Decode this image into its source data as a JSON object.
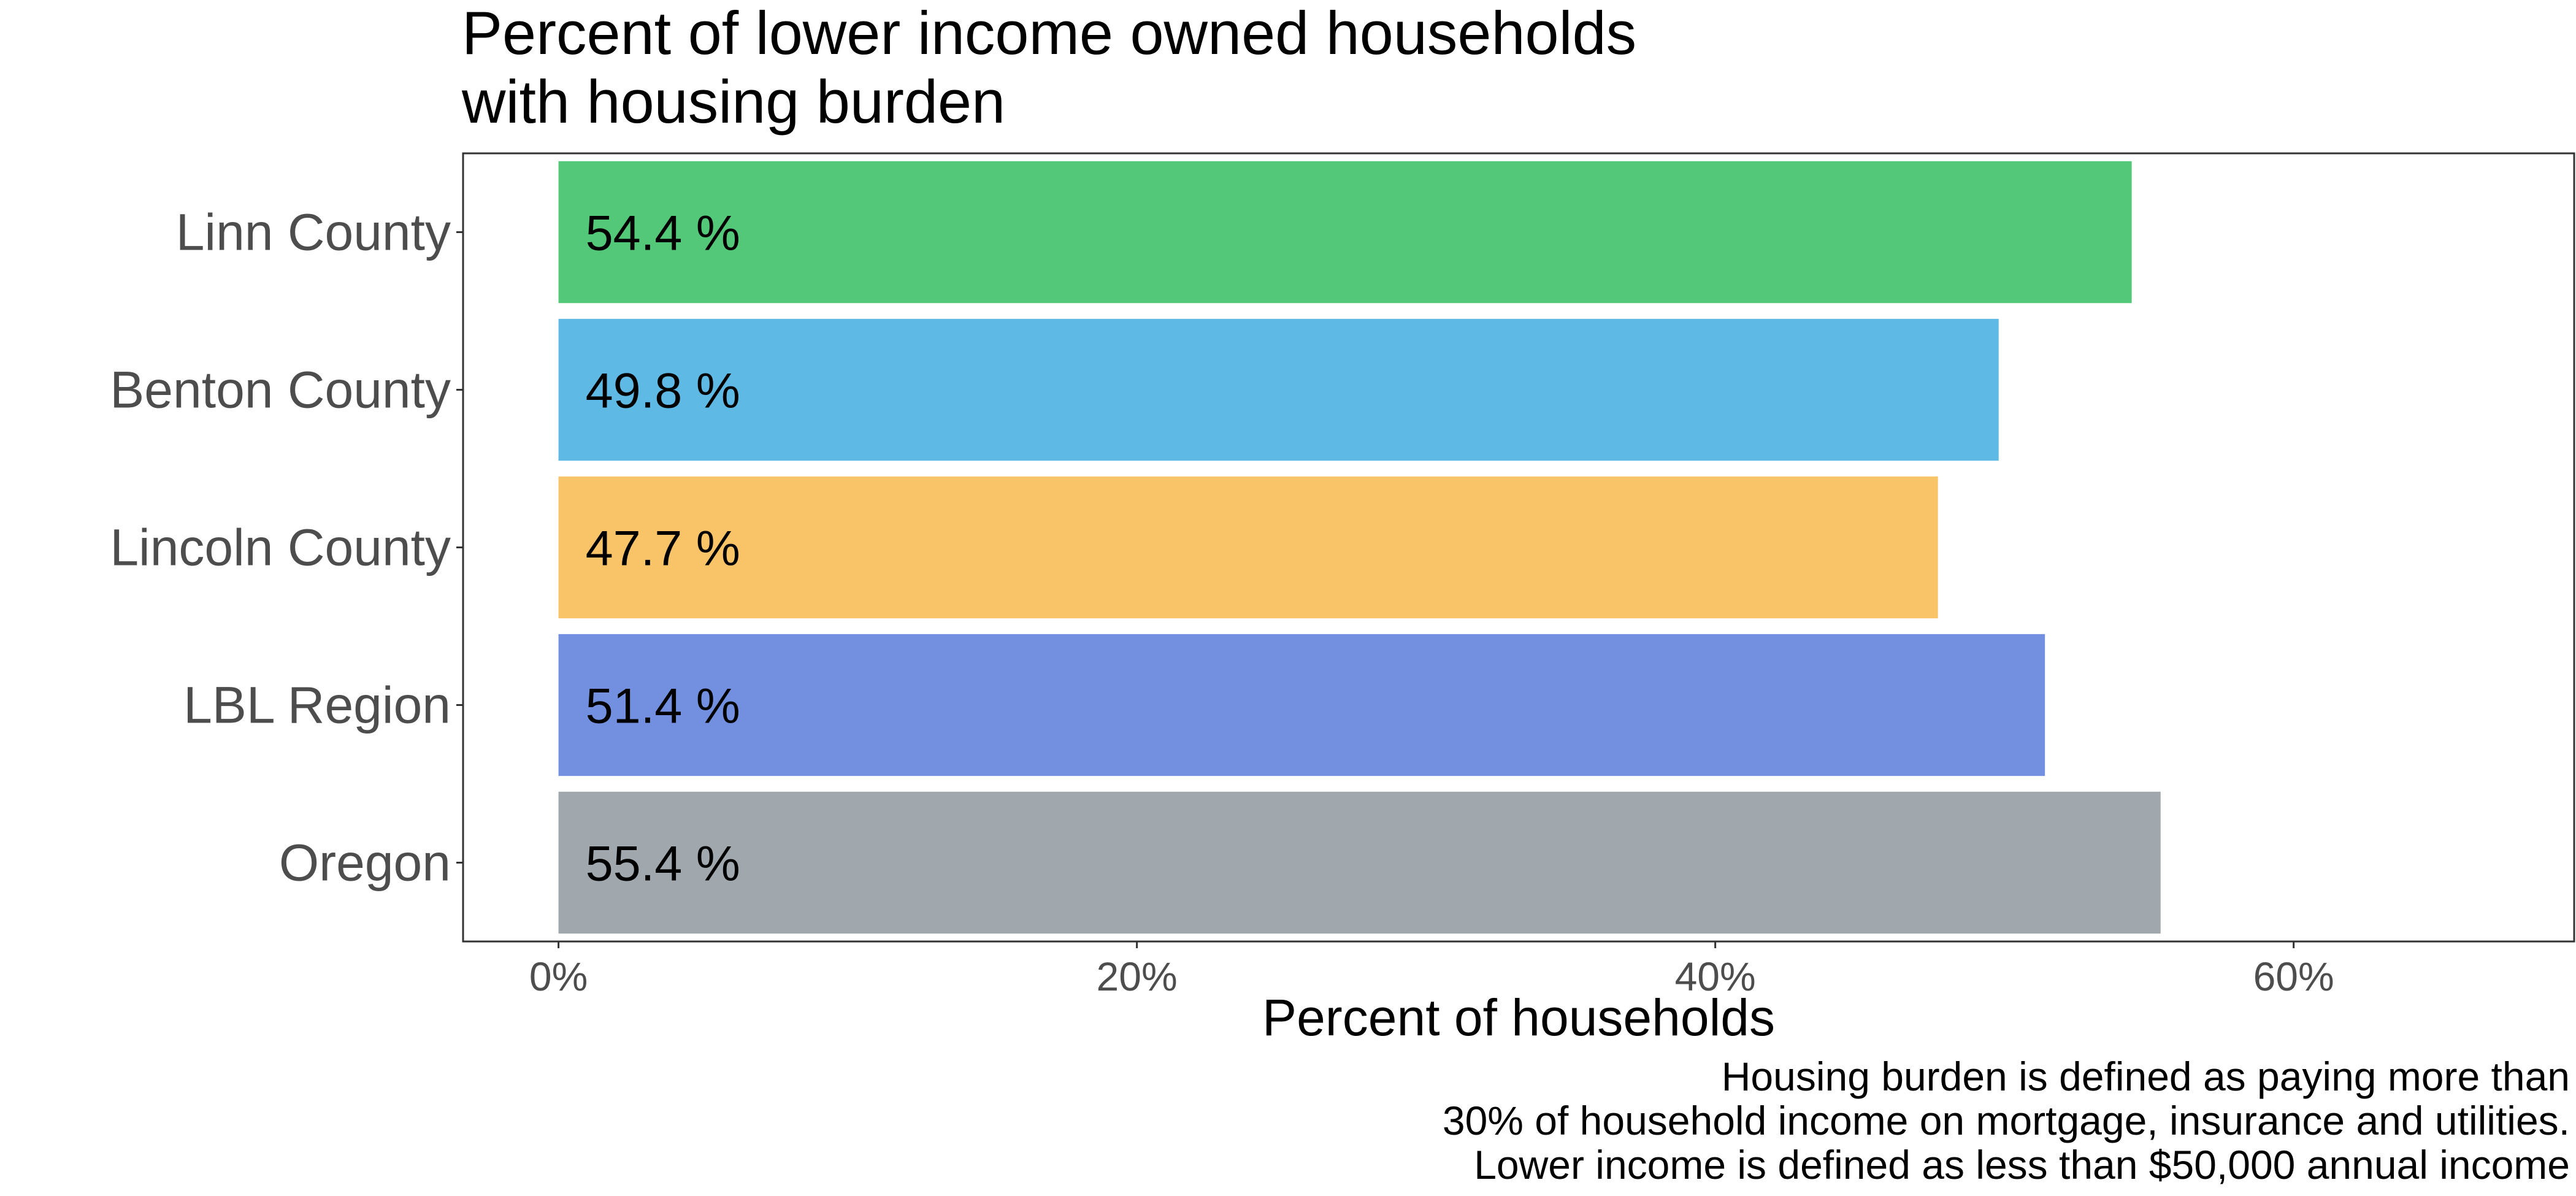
{
  "chart_data": {
    "type": "bar",
    "orientation": "horizontal",
    "title_lines": [
      "Percent of lower income owned households",
      "with housing burden"
    ],
    "xlabel": "Percent of households",
    "ylabel": "",
    "categories": [
      "Linn County",
      "Benton County",
      "Lincoln County",
      "LBL Region",
      "Oregon"
    ],
    "values": [
      54.4,
      49.8,
      47.7,
      51.4,
      55.4
    ],
    "value_labels": [
      "54.4 %",
      "49.8 %",
      "47.7 %",
      "51.4 %",
      "55.4 %"
    ],
    "colors": [
      "#52c878",
      "#5eb9e4",
      "#f9c467",
      "#7390e0",
      "#a0a8ae"
    ],
    "xlim": [
      -3.3,
      69.7
    ],
    "xticks": [
      0,
      20,
      40,
      60
    ],
    "xtick_labels": [
      "0%",
      "20%",
      "40%",
      "60%"
    ],
    "grid": false,
    "legend": "none",
    "caption_lines": [
      "Housing burden is defined as paying more than",
      "30% of household income on mortgage, insurance and utilities.",
      "Lower income is defined as less than $50,000 annual income"
    ]
  }
}
